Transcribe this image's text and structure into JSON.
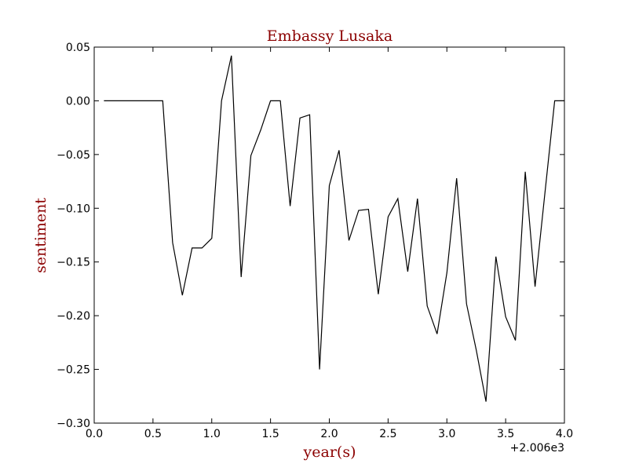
{
  "chart_data": {
    "type": "line",
    "title": "Embassy Lusaka",
    "xlabel": "year(s)",
    "ylabel": "sentiment",
    "x_offset_label": "+2.006e3",
    "xlim": [
      0.0,
      4.0
    ],
    "ylim": [
      -0.3,
      0.05
    ],
    "x_ticks": [
      "0.0",
      "0.5",
      "1.0",
      "1.5",
      "2.0",
      "2.5",
      "3.0",
      "3.5",
      "4.0"
    ],
    "y_ticks": [
      "0.05",
      "0.00",
      "−0.05",
      "−0.10",
      "−0.15",
      "−0.20",
      "−0.25",
      "−0.30"
    ],
    "grid": false,
    "colors": {
      "line": "#000000",
      "title": "#8b0000",
      "labels": "#8b0000"
    },
    "series": [
      {
        "x": [
          0.083,
          0.167,
          0.25,
          0.333,
          0.417,
          0.5,
          0.583,
          0.667,
          0.75,
          0.833,
          0.917,
          1.0,
          1.083,
          1.167,
          1.25,
          1.333,
          1.417,
          1.5,
          1.583,
          1.667,
          1.75,
          1.833,
          1.917,
          2.0,
          2.083,
          2.167,
          2.25,
          2.333,
          2.417,
          2.5,
          2.583,
          2.667,
          2.75,
          2.833,
          2.917,
          3.0,
          3.083,
          3.167,
          3.25,
          3.333,
          3.417,
          3.5,
          3.583,
          3.667,
          3.75,
          3.833,
          3.917,
          4.0
        ],
        "y": [
          0.0,
          0.0,
          0.0,
          0.0,
          0.0,
          0.0,
          0.0,
          -0.132,
          -0.181,
          -0.137,
          -0.137,
          -0.128,
          0.0,
          0.042,
          -0.164,
          -0.051,
          -0.027,
          0.0,
          0.0,
          -0.098,
          -0.016,
          -0.013,
          -0.25,
          -0.079,
          -0.046,
          -0.13,
          -0.102,
          -0.101,
          -0.18,
          -0.108,
          -0.091,
          -0.159,
          -0.091,
          -0.191,
          -0.217,
          -0.16,
          -0.072,
          -0.189,
          -0.232,
          -0.28,
          -0.145,
          -0.201,
          -0.223,
          -0.066,
          -0.173,
          -0.087,
          0.0,
          0.0
        ]
      }
    ]
  }
}
